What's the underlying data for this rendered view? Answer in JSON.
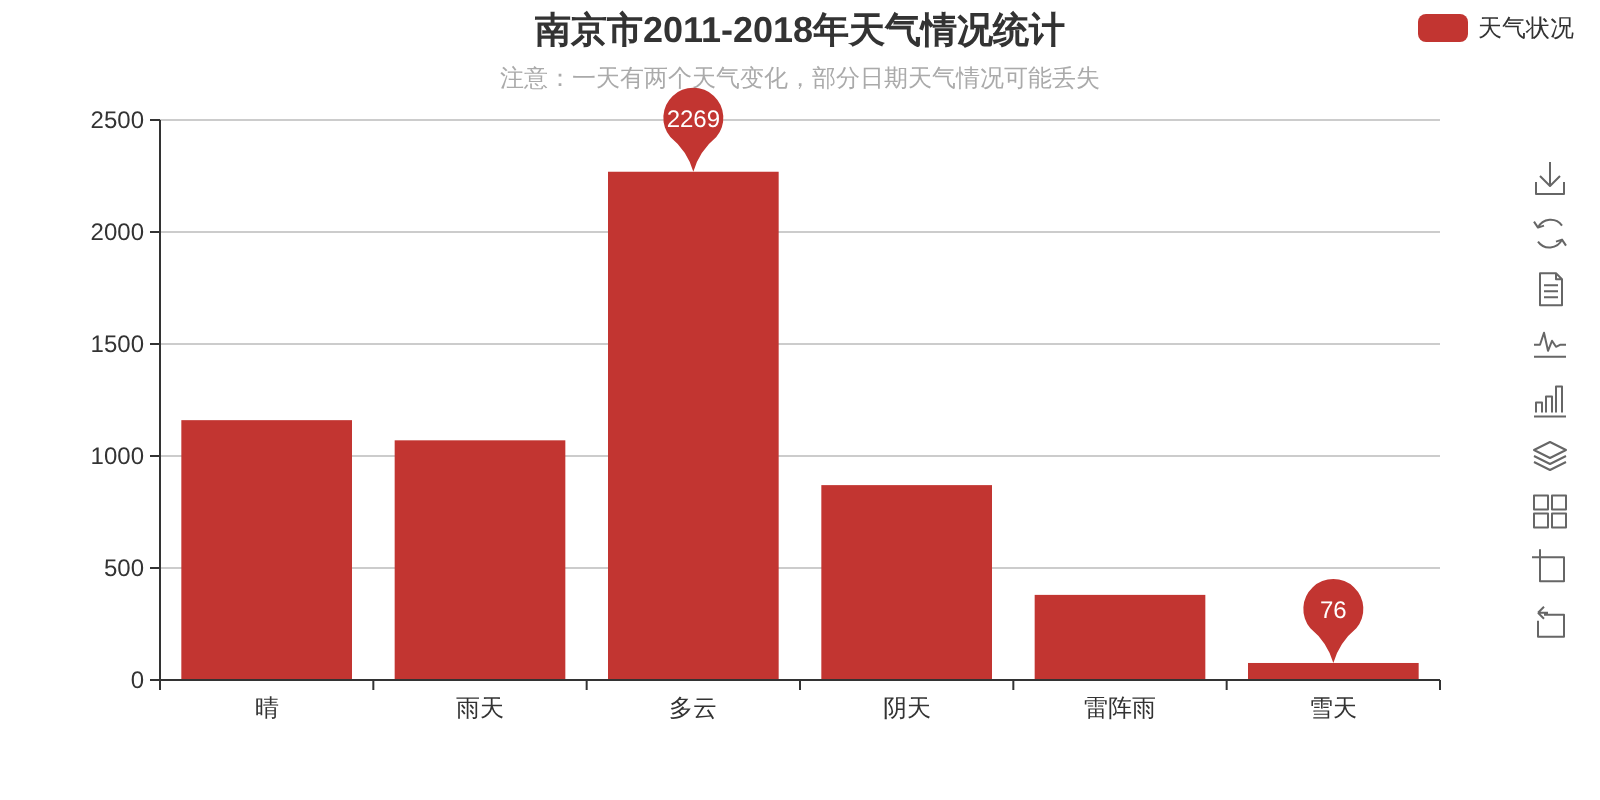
{
  "chart_data": {
    "type": "bar",
    "title": "南京市2011-2018年天气情况统计",
    "subtitle": "注意：一天有两个天气变化，部分日期天气情况可能丢失",
    "categories": [
      "晴",
      "雨天",
      "多云",
      "阴天",
      "雷阵雨",
      "雪天"
    ],
    "series": [
      {
        "name": "天气状况",
        "color": "#c23531",
        "values": [
          1160,
          1070,
          2269,
          870,
          380,
          76
        ],
        "value_labels": [
          null,
          null,
          "2269",
          null,
          null,
          "76"
        ]
      }
    ],
    "ylim": [
      0,
      2500
    ],
    "yticks": [
      0,
      500,
      1000,
      1500,
      2000,
      2500
    ],
    "grid": "y",
    "legend": "top right"
  }
}
